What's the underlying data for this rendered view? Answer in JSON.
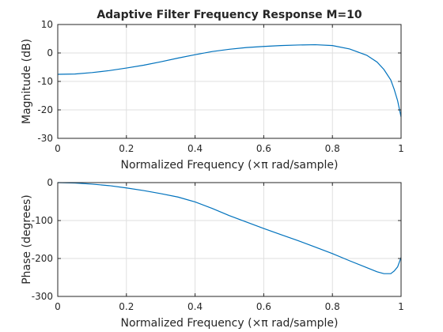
{
  "chart_data": [
    {
      "type": "line",
      "title": "Adaptive Filter Frequency Response M=10",
      "xlabel": "Normalized Frequency  (×π rad/sample)",
      "ylabel": "Magnitude (dB)",
      "xlim": [
        0,
        1
      ],
      "ylim": [
        -30,
        10
      ],
      "x_ticks": [
        0,
        0.2,
        0.4,
        0.6,
        0.8,
        1
      ],
      "x_tick_labels": [
        "0",
        "0.2",
        "0.4",
        "0.6",
        "0.8",
        "1"
      ],
      "y_ticks": [
        10,
        0,
        -10,
        -20,
        -30
      ],
      "y_tick_labels": [
        "10",
        "0",
        "-10",
        "-20",
        "-30"
      ],
      "grid": true,
      "color": "#0072bd",
      "series": [
        {
          "x": [
            0,
            0.05,
            0.1,
            0.15,
            0.2,
            0.25,
            0.3,
            0.35,
            0.4,
            0.45,
            0.5,
            0.55,
            0.6,
            0.65,
            0.7,
            0.75,
            0.8,
            0.85,
            0.9,
            0.93,
            0.95,
            0.97,
            0.98,
            0.99,
            1.0
          ],
          "y": [
            -7.5,
            -7.4,
            -6.9,
            -6.2,
            -5.3,
            -4.3,
            -3.1,
            -1.8,
            -0.6,
            0.5,
            1.3,
            1.9,
            2.3,
            2.6,
            2.8,
            2.9,
            2.6,
            1.4,
            -0.8,
            -3.2,
            -5.8,
            -9.5,
            -12.8,
            -16.8,
            -22.5
          ]
        }
      ]
    },
    {
      "type": "line",
      "xlabel": "Normalized Frequency  (×π rad/sample)",
      "ylabel": "Phase (degrees)",
      "xlim": [
        0,
        1
      ],
      "ylim": [
        -300,
        0
      ],
      "x_ticks": [
        0,
        0.2,
        0.4,
        0.6,
        0.8,
        1
      ],
      "x_tick_labels": [
        "0",
        "0.2",
        "0.4",
        "0.6",
        "0.8",
        "1"
      ],
      "y_ticks": [
        0,
        -100,
        -200,
        -300
      ],
      "y_tick_labels": [
        "0",
        "-100",
        "-200",
        "-300"
      ],
      "grid": true,
      "color": "#0072bd",
      "series": [
        {
          "x": [
            0,
            0.05,
            0.1,
            0.15,
            0.2,
            0.25,
            0.3,
            0.35,
            0.4,
            0.45,
            0.5,
            0.55,
            0.6,
            0.65,
            0.7,
            0.75,
            0.8,
            0.85,
            0.9,
            0.93,
            0.95,
            0.97,
            0.98,
            0.99,
            1.0
          ],
          "y": [
            0,
            -1,
            -4,
            -8,
            -14,
            -21,
            -29,
            -38,
            -51,
            -68,
            -87,
            -104,
            -121,
            -137,
            -153,
            -170,
            -187,
            -206,
            -224,
            -235,
            -240,
            -240,
            -233,
            -222,
            -197
          ]
        }
      ]
    }
  ]
}
